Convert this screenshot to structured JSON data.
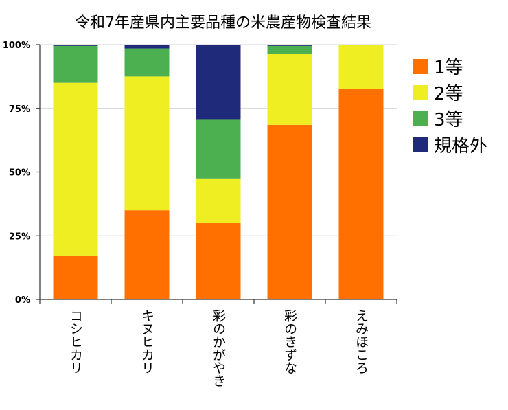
{
  "chart_data": {
    "type": "bar",
    "stacked": true,
    "title": "令和7年産県内主要品種の米農産物検査結果",
    "xlabel": "",
    "ylabel": "",
    "ylim": [
      0,
      100
    ],
    "yticks": [
      "0%",
      "25%",
      "50%",
      "75%",
      "100%"
    ],
    "categories": [
      "コシヒカリ",
      "キヌヒカリ",
      "彩のかがやき",
      "彩のきずな",
      "えみほころ"
    ],
    "series": [
      {
        "name": "1等",
        "color": "#FF7000",
        "values": [
          17,
          35,
          30,
          68.5,
          82.5
        ]
      },
      {
        "name": "2等",
        "color": "#EEEE22",
        "values": [
          68,
          52.5,
          17.5,
          28,
          17.5
        ]
      },
      {
        "name": "3等",
        "color": "#4CAF50",
        "values": [
          14.5,
          11,
          23,
          3,
          0
        ]
      },
      {
        "name": "規格外",
        "color": "#1F2A7A",
        "values": [
          0.5,
          1.5,
          29.5,
          0.5,
          0
        ]
      }
    ],
    "grid": true,
    "legend": "right"
  }
}
